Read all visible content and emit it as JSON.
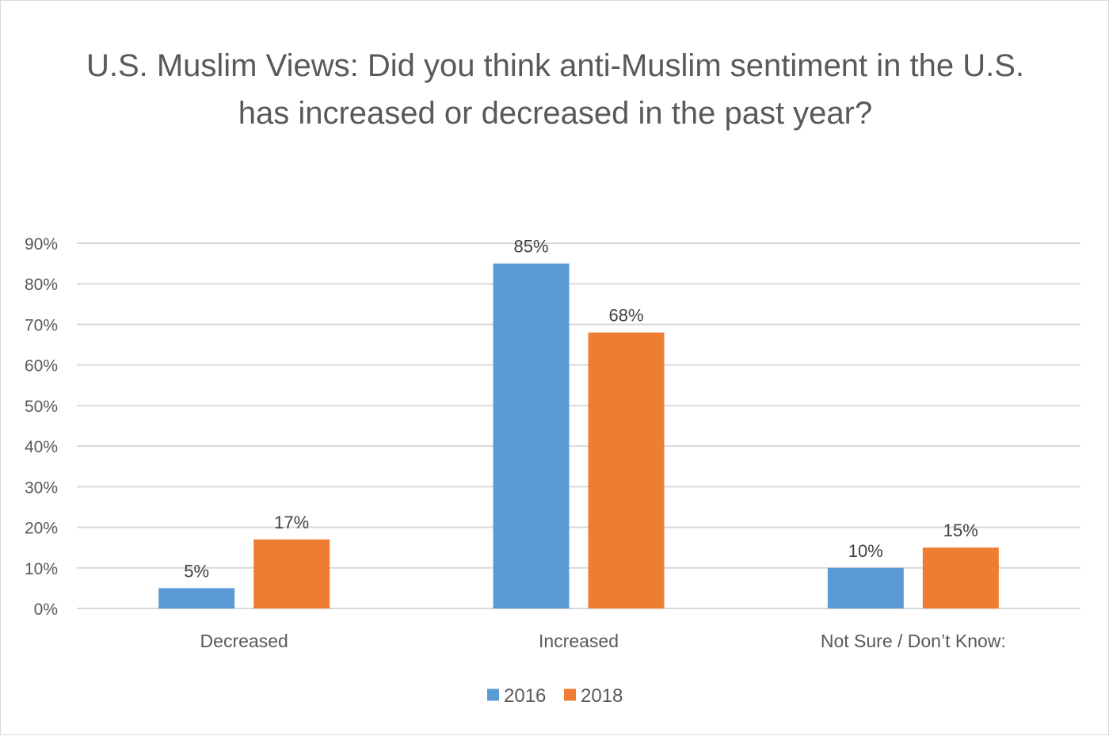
{
  "chart_data": {
    "type": "bar",
    "title": "U.S. Muslim Views: Did you think anti-Muslim sentiment in the U.S. has increased or decreased in the past year?",
    "title_lines": [
      "U.S. Muslim Views: Did you think anti-Muslim sentiment in the U.S.",
      "has increased or decreased in the past year?"
    ],
    "categories": [
      "Decreased",
      "Increased",
      "Not Sure / Don’t Know:"
    ],
    "series": [
      {
        "name": "2016",
        "values": [
          5,
          85,
          10
        ],
        "color": "#5b9bd5"
      },
      {
        "name": "2018",
        "values": [
          17,
          68,
          15
        ],
        "color": "#ed7d31"
      }
    ],
    "value_format": "percent",
    "ylim": [
      0,
      90
    ],
    "yticks": [
      0,
      10,
      20,
      30,
      40,
      50,
      60,
      70,
      80,
      90
    ],
    "ytick_labels": [
      "0%",
      "10%",
      "20%",
      "30%",
      "40%",
      "50%",
      "60%",
      "70%",
      "80%",
      "90%"
    ],
    "xlabel": "",
    "ylabel": "",
    "grid": true,
    "legend_position": "bottom-center",
    "gridline_color": "#d9d9d9"
  }
}
